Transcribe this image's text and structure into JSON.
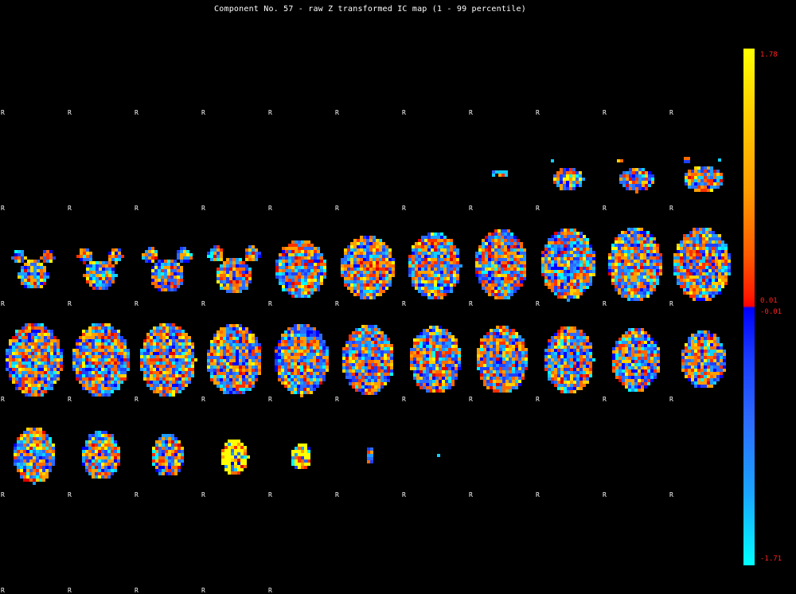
{
  "title": "Component No. 57 - raw Z transformed IC map (1 - 99 percentile)",
  "orientation_marker": "R",
  "colorbar": {
    "max": "1.78",
    "pos_min": "0.01",
    "neg_min": "-0.01",
    "min": "-1.71",
    "colors": {
      "positive_high": "#ffff00",
      "positive_mid": "#ff8000",
      "positive_low": "#ff0000",
      "negative_low": "#0000ff",
      "negative_mid": "#2c6cff",
      "negative_high": "#00ffff"
    }
  }
}
